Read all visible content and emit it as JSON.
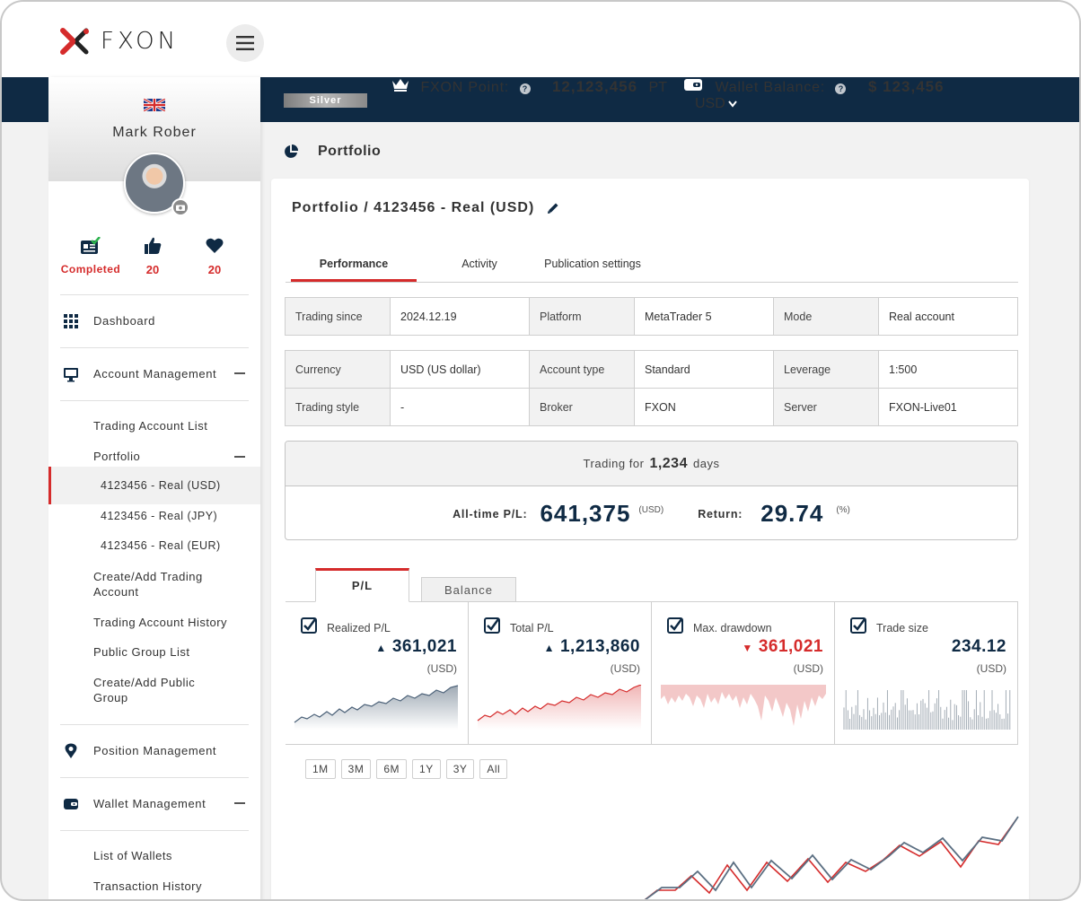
{
  "brand": {
    "logo_text": "FXON"
  },
  "topbar": {
    "tier": "Silver",
    "point_label": "FXON Point:",
    "point_value": "12,123,456",
    "point_unit": "PT",
    "wallet_label": "Wallet Balance:",
    "wallet_value": "$ 123,456",
    "wallet_currency": "USD"
  },
  "user": {
    "name": "Mark Rober",
    "stats": [
      {
        "label": "Completed"
      },
      {
        "label": "20"
      },
      {
        "label": "20"
      }
    ]
  },
  "sidebar": {
    "dashboard": "Dashboard",
    "account_management": "Account Management",
    "trading_account_list": "Trading Account List",
    "portfolio": "Portfolio",
    "accounts": [
      "4123456 - Real (USD)",
      "4123456 - Real (JPY)",
      "4123456 - Real (EUR)"
    ],
    "create_add_trading": "Create/Add Trading Account",
    "trading_account_history": "Trading Account History",
    "public_group_list": "Public Group List",
    "create_add_public": "Create/Add Public Group",
    "position_management": "Position Management",
    "wallet_management": "Wallet Management",
    "list_of_wallets": "List of Wallets",
    "transaction_history": "Transaction History"
  },
  "page": {
    "heading": "Portfolio",
    "card_title": "Portfolio / 4123456 - Real (USD)",
    "tabs": [
      "Performance",
      "Activity",
      "Publication settings"
    ]
  },
  "info1": [
    [
      "Trading since",
      "2024.12.19",
      "Platform",
      "MetaTrader 5",
      "Mode",
      "Real account"
    ]
  ],
  "info2": [
    [
      "Currency",
      "USD (US dollar)",
      "Account type",
      "Standard",
      "Leverage",
      "1:500"
    ],
    [
      "Trading style",
      "-",
      "Broker",
      "FXON",
      "Server",
      "FXON-Live01"
    ]
  ],
  "summary": {
    "trading_for_label": "Trading for",
    "days_value": "1,234",
    "days_unit": "days",
    "pl_label": "All-time P/L:",
    "pl_value": "641,375",
    "pl_unit": "(USD)",
    "return_label": "Return:",
    "return_value": "29.74",
    "return_unit": "(%)"
  },
  "chart_tabs": [
    "P/L",
    "Balance"
  ],
  "metrics": [
    {
      "name": "Realized P/L",
      "arrow": "▲",
      "value": "361,021",
      "unit": "(USD)"
    },
    {
      "name": "Total P/L",
      "arrow": "▲",
      "value": "1,213,860",
      "unit": "(USD)"
    },
    {
      "name": "Max. drawdown",
      "arrow": "▼",
      "value": "361,021",
      "unit": "(USD)"
    },
    {
      "name": "Trade size",
      "arrow": "",
      "value": "234.12",
      "unit": "(USD)"
    }
  ],
  "ranges": [
    "1M",
    "3M",
    "6M",
    "1Y",
    "3Y",
    "All"
  ],
  "colors": {
    "navy": "#0f2a44",
    "accent_red": "#d52b2b"
  }
}
